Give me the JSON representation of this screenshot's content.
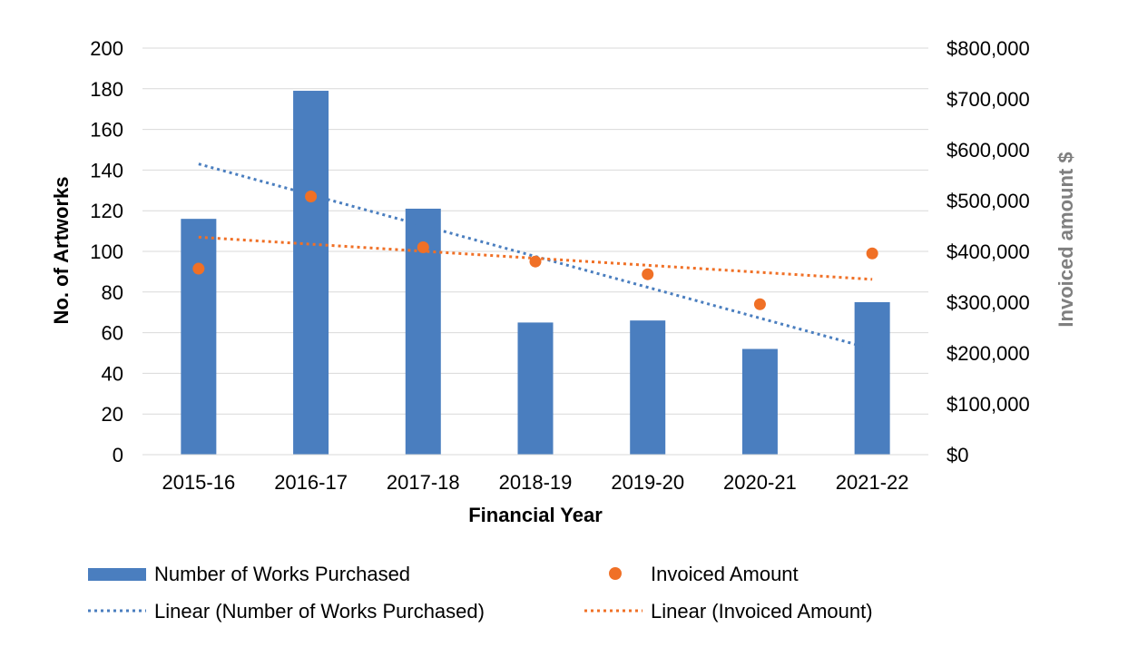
{
  "chart_data": {
    "type": "bar",
    "categories": [
      "2015-16",
      "2016-17",
      "2017-18",
      "2018-19",
      "2019-20",
      "2020-21",
      "2021-22"
    ],
    "xlabel": "Financial Year",
    "ylabel": "No. of Artworks",
    "y2label": "Invoiced amount $",
    "ylim": [
      0,
      200
    ],
    "yticks": [
      0,
      20,
      40,
      60,
      80,
      100,
      120,
      140,
      160,
      180,
      200
    ],
    "y2lim": [
      0,
      800000
    ],
    "y2ticks": [
      "$0",
      "$100,000",
      "$200,000",
      "$300,000",
      "$400,000",
      "$500,000",
      "$600,000",
      "$700,000",
      "$800,000"
    ],
    "grid": "horizontal",
    "legend_position": "bottom",
    "series": [
      {
        "name": "Number of Works Purchased",
        "type": "bar",
        "axis": "left",
        "color": "#4a7ebf",
        "values": [
          116,
          179,
          121,
          65,
          66,
          52,
          75
        ]
      },
      {
        "name": "Invoiced Amount",
        "type": "scatter",
        "axis": "right",
        "color": "#f07026",
        "values": [
          366000,
          508000,
          408000,
          380000,
          355000,
          296000,
          396000
        ]
      }
    ],
    "trendlines": [
      {
        "name": "Linear (Number of Works Purchased)",
        "of": "Number of Works Purchased",
        "axis": "left",
        "color": "#4a7ebf",
        "start": 143,
        "end": 52
      },
      {
        "name": "Linear (Invoiced Amount)",
        "of": "Invoiced Amount",
        "axis": "right",
        "color": "#f07026",
        "start": 428000,
        "end": 345000
      }
    ]
  }
}
